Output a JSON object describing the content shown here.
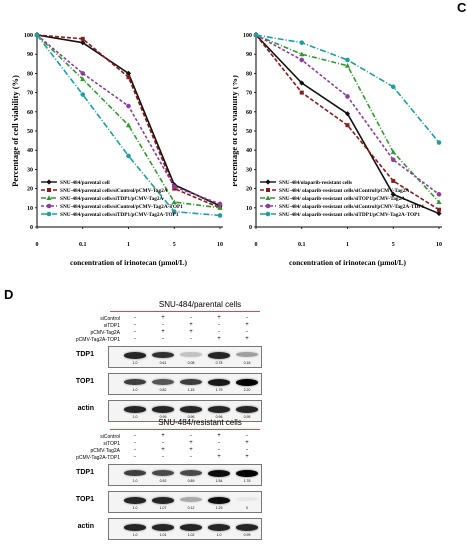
{
  "panel_c_label": "C",
  "panel_d_label": "D",
  "chart_data": [
    {
      "type": "line",
      "ylabel": "Percentage of cell viability (%)",
      "xlabel": "concentration of irinotecan (µmol/L)",
      "categories": [
        "0",
        "0.1",
        "1",
        "5",
        "10"
      ],
      "yticks": [
        "0",
        "10",
        "20",
        "30",
        "40",
        "50",
        "60",
        "70",
        "80",
        "90",
        "100"
      ],
      "ylim": [
        0,
        100
      ],
      "legend": "bottom-left",
      "series": [
        {
          "name": "SNU-484/parental cell",
          "color": "#111111",
          "dash": "",
          "marker": "diamond",
          "values": [
            100,
            96,
            80,
            22,
            11
          ]
        },
        {
          "name": "SNU-484/parental cells/siControl/pCMV-Tag2A",
          "color": "#8b1a1a",
          "dash": "4,2",
          "marker": "square",
          "values": [
            100,
            98,
            78,
            20,
            10
          ]
        },
        {
          "name": "SNU-484/parental cells/siTDP1/pCMV-Tag2A",
          "color": "#2e9b2e",
          "dash": "5,2,1,2",
          "marker": "triangle",
          "values": [
            100,
            77,
            53,
            13,
            10
          ]
        },
        {
          "name": "SNU-484/parental cells/siControl/pCMV-Tag2A-TOP1",
          "color": "#8e3c9e",
          "dash": "3,2",
          "marker": "circle",
          "values": [
            100,
            80,
            63,
            21,
            12
          ]
        },
        {
          "name": "SNU-484/parental cells/siTDP1/pCMV-Tag2A-TOP1",
          "color": "#1aa0a0",
          "dash": "6,2,1,2",
          "marker": "circle",
          "values": [
            100,
            69,
            37,
            8,
            6
          ]
        }
      ]
    },
    {
      "type": "line",
      "ylabel": "Percentage of cell viability (%)",
      "xlabel": "concentration of irinotecan (µmol/L)",
      "categories": [
        "0",
        "0.1",
        "1",
        "5",
        "10"
      ],
      "yticks": [
        "0",
        "10",
        "20",
        "30",
        "40",
        "50",
        "60",
        "70",
        "80",
        "90",
        "100"
      ],
      "ylim": [
        0,
        100
      ],
      "legend": "bottom-left",
      "series": [
        {
          "name": "SNU-484/olaparib-resistant cells",
          "color": "#111111",
          "dash": "",
          "marker": "diamond",
          "values": [
            100,
            75,
            59,
            17,
            7
          ]
        },
        {
          "name": "SNU-484/ olaparib-resistant cells/siControl/pCMV-Tag2A",
          "color": "#8b1a1a",
          "dash": "4,2",
          "marker": "square",
          "values": [
            100,
            70,
            53,
            24,
            9
          ]
        },
        {
          "name": "SNU-484/ olaparib-resistant cells/siTOP1/pCMV-Tag2A",
          "color": "#2e9b2e",
          "dash": "5,2,1,2",
          "marker": "triangle",
          "values": [
            100,
            90,
            84,
            39,
            13
          ]
        },
        {
          "name": "SNU-484/ olaparib-resistant cells/siControl/pCMV-Tag2A-TDP1",
          "color": "#8e3c9e",
          "dash": "3,2",
          "marker": "circle",
          "values": [
            100,
            87,
            68,
            35,
            17
          ]
        },
        {
          "name": "SNU-484/ olaparib-resistant cells/siTDP1/pCMV-Tag2A-TOP1",
          "color": "#1aa0a0",
          "dash": "6,2,1,2",
          "marker": "circle",
          "values": [
            100,
            96,
            87,
            73,
            44
          ]
        }
      ]
    }
  ],
  "blots": [
    {
      "title": "SNU-484/parental cells",
      "conditions": [
        {
          "label": "siControl",
          "values": [
            "-",
            "+",
            "-",
            "+",
            "-"
          ]
        },
        {
          "label": "siTDP1",
          "values": [
            "-",
            "-",
            "+",
            "-",
            "+"
          ]
        },
        {
          "label": "pCMV-Tag2A",
          "values": [
            "-",
            "+",
            "+",
            "-",
            "-"
          ]
        },
        {
          "label": "pCMV-Tag2A-TOP1",
          "values": [
            "-",
            "-",
            "-",
            "+",
            "+"
          ]
        }
      ],
      "rows": [
        {
          "name": "TDP1",
          "values": [
            "1.0",
            "0.61",
            "0.08",
            "0.78",
            "0.16"
          ],
          "intensity": [
            0.85,
            0.8,
            0.2,
            0.85,
            0.35
          ]
        },
        {
          "name": "TOP1",
          "values": [
            "1.0",
            "0.82",
            "1.15",
            "1.79",
            "2.20"
          ],
          "intensity": [
            0.75,
            0.65,
            0.75,
            0.9,
            1.0
          ]
        },
        {
          "name": "actin",
          "values": [
            "1.0",
            "0.99",
            "0.96",
            "0.96",
            "0.95"
          ],
          "intensity": [
            0.85,
            0.85,
            0.85,
            0.85,
            0.85
          ]
        }
      ]
    },
    {
      "title": "SNU-484/resistant cells",
      "conditions": [
        {
          "label": "siControl",
          "values": [
            "-",
            "+",
            "-",
            "+",
            "-"
          ]
        },
        {
          "label": "siTOP1",
          "values": [
            "-",
            "-",
            "+",
            "-",
            "+"
          ]
        },
        {
          "label": "pCMV-Tag2A",
          "values": [
            "-",
            "+",
            "+",
            "-",
            "-"
          ]
        },
        {
          "label": "pCMV-Tag2A-TDP1",
          "values": [
            "-",
            "-",
            "-",
            "+",
            "+"
          ]
        }
      ],
      "rows": [
        {
          "name": "TDP1",
          "values": [
            "1.0",
            "0.92",
            "0.89",
            "1.54",
            "1.76"
          ],
          "intensity": [
            0.75,
            0.7,
            0.7,
            0.95,
            1.0
          ]
        },
        {
          "name": "TOP1",
          "values": [
            "1.0",
            "1.07",
            "0.12",
            "1.29",
            "0"
          ],
          "intensity": [
            0.85,
            0.85,
            0.3,
            0.95,
            0.05
          ]
        },
        {
          "name": "actin",
          "values": [
            "1.0",
            "1.01",
            "1.02",
            "1.0",
            "0.99"
          ],
          "intensity": [
            0.85,
            0.85,
            0.85,
            0.85,
            0.85
          ]
        }
      ]
    }
  ]
}
